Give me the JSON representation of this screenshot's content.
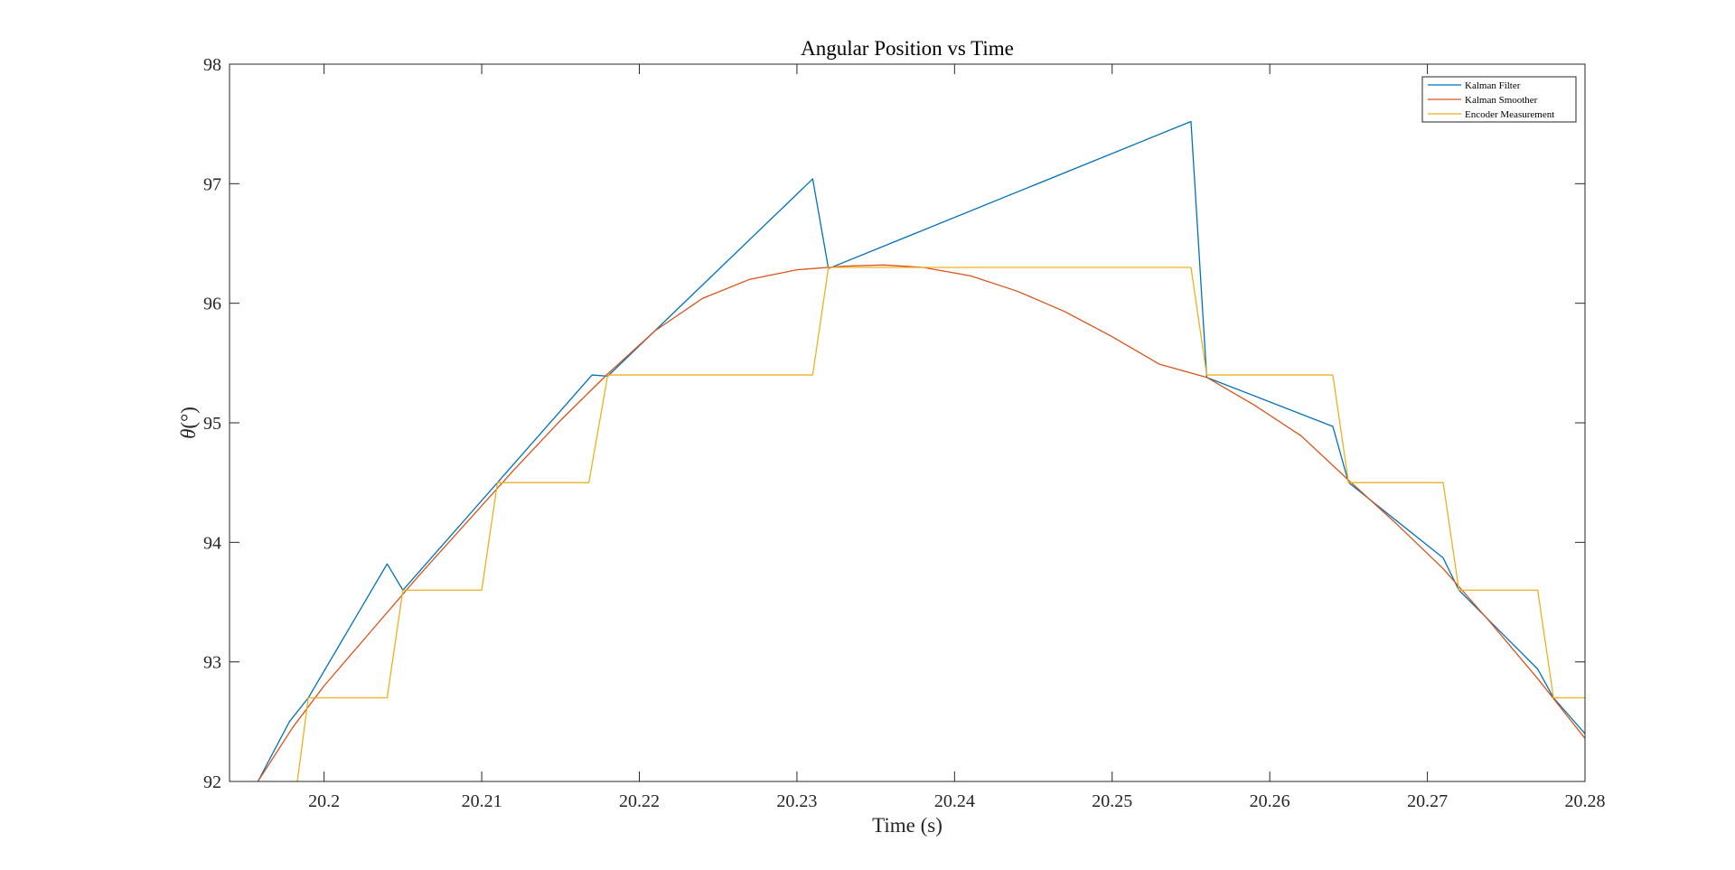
{
  "chart_data": {
    "type": "line",
    "title": "Angular Position vs Time",
    "xlabel": "Time (s)",
    "ylabel_main": "θ",
    "ylabel_unit": "(°)",
    "xlim": [
      20.194,
      20.28
    ],
    "ylim": [
      92,
      98
    ],
    "xticks": [
      20.2,
      20.21,
      20.22,
      20.23,
      20.24,
      20.25,
      20.26,
      20.27,
      20.28
    ],
    "xtick_labels": [
      "20.2",
      "20.21",
      "20.22",
      "20.23",
      "20.24",
      "20.25",
      "20.26",
      "20.27",
      "20.28"
    ],
    "yticks": [
      92,
      93,
      94,
      95,
      96,
      97,
      98
    ],
    "ytick_labels": [
      "92",
      "93",
      "94",
      "95",
      "96",
      "97",
      "98"
    ],
    "grid": false,
    "legend_position": "top-right",
    "series": [
      {
        "name": "Kalman Filter",
        "color": "#0072BD",
        "x": [
          20.1958,
          20.1978,
          20.199,
          20.204,
          20.205,
          20.211,
          20.217,
          20.218,
          20.231,
          20.232,
          20.255,
          20.256,
          20.264,
          20.265,
          20.271,
          20.272,
          20.277,
          20.278,
          20.28
        ],
        "y": [
          92.0,
          92.5,
          92.7,
          93.82,
          93.6,
          94.5,
          95.4,
          95.39,
          97.04,
          96.29,
          97.52,
          95.38,
          94.97,
          94.5,
          93.87,
          93.6,
          92.94,
          92.7,
          92.4
        ]
      },
      {
        "name": "Kalman Smoother",
        "color": "#D95319",
        "x": [
          20.1958,
          20.198,
          20.2,
          20.203,
          20.206,
          20.209,
          20.212,
          20.215,
          20.218,
          20.221,
          20.224,
          20.227,
          20.23,
          20.233,
          20.2355,
          20.238,
          20.241,
          20.244,
          20.247,
          20.25,
          20.253,
          20.256,
          20.259,
          20.262,
          20.265,
          20.268,
          20.271,
          20.274,
          20.277,
          20.28
        ],
        "y": [
          92.0,
          92.45,
          92.8,
          93.26,
          93.72,
          94.16,
          94.6,
          95.02,
          95.41,
          95.77,
          96.04,
          96.2,
          96.28,
          96.31,
          96.32,
          96.3,
          96.23,
          96.1,
          95.93,
          95.72,
          95.49,
          95.38,
          95.15,
          94.89,
          94.52,
          94.16,
          93.78,
          93.33,
          92.86,
          92.36
        ]
      },
      {
        "name": "Encoder Measurement",
        "color": "#EDB120",
        "x": [
          20.1983,
          20.199,
          20.204,
          20.205,
          20.21,
          20.211,
          20.2168,
          20.218,
          20.231,
          20.232,
          20.255,
          20.256,
          20.264,
          20.265,
          20.271,
          20.272,
          20.277,
          20.278,
          20.28
        ],
        "y": [
          92.0,
          92.7,
          92.7,
          93.6,
          93.6,
          94.5,
          94.5,
          95.4,
          95.4,
          96.3,
          96.3,
          95.4,
          95.4,
          94.5,
          94.5,
          93.6,
          93.6,
          92.7,
          92.7
        ]
      }
    ]
  }
}
